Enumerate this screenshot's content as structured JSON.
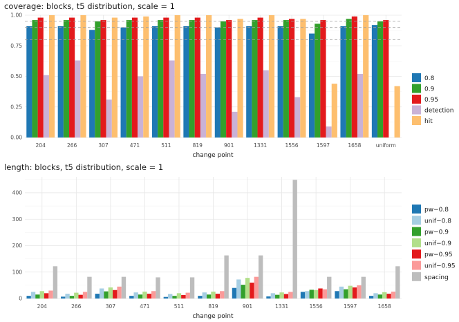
{
  "chart_data": [
    {
      "type": "bar",
      "title": "coverage: blocks, t5 distribution, scale = 1",
      "xlabel": "change point",
      "ylabel": "",
      "ylim": [
        0,
        1.0
      ],
      "yticks": [
        "0.00",
        "0.25",
        "0.50",
        "0.75",
        "1.00"
      ],
      "reference_lines": [
        0.8,
        0.9,
        0.95
      ],
      "categories": [
        "204",
        "266",
        "307",
        "471",
        "511",
        "819",
        "901",
        "1331",
        "1556",
        "1597",
        "1658",
        "uniform"
      ],
      "legend_position": "right",
      "grid": true,
      "series": [
        {
          "name": "0.8",
          "color": "#1f78b4",
          "values": [
            0.91,
            0.91,
            0.88,
            0.9,
            0.91,
            0.91,
            0.9,
            0.91,
            0.91,
            0.85,
            0.91,
            0.92
          ]
        },
        {
          "name": "0.9",
          "color": "#33a02c",
          "values": [
            0.96,
            0.96,
            0.95,
            0.96,
            0.96,
            0.96,
            0.95,
            0.96,
            0.96,
            0.93,
            0.97,
            0.95
          ]
        },
        {
          "name": "0.95",
          "color": "#e31a1c",
          "values": [
            0.98,
            0.98,
            0.96,
            0.98,
            0.98,
            0.98,
            0.96,
            0.98,
            0.97,
            0.96,
            0.99,
            0.96
          ]
        },
        {
          "name": "detection",
          "color": "#cab2d6",
          "values": [
            0.51,
            0.63,
            0.31,
            0.5,
            0.63,
            0.52,
            0.21,
            0.55,
            0.33,
            0.09,
            0.52,
            null
          ]
        },
        {
          "name": "hit",
          "color": "#fdbf6f",
          "values": [
            1.0,
            1.0,
            0.98,
            0.99,
            1.0,
            1.0,
            0.97,
            1.0,
            0.97,
            0.44,
            1.0,
            0.42
          ]
        }
      ]
    },
    {
      "type": "bar",
      "title": "length: blocks, t5 distribution, scale = 1",
      "xlabel": "change point",
      "ylabel": "",
      "ylim": [
        0,
        460
      ],
      "yticks": [
        "0",
        "100",
        "200",
        "300",
        "400"
      ],
      "categories": [
        "204",
        "266",
        "307",
        "471",
        "511",
        "819",
        "901",
        "1331",
        "1556",
        "1597",
        "1658"
      ],
      "legend_position": "right",
      "grid": true,
      "series": [
        {
          "name": "pw−0.8",
          "color": "#1f78b4",
          "values": [
            10,
            7,
            18,
            10,
            6,
            10,
            40,
            8,
            25,
            28,
            10
          ]
        },
        {
          "name": "unif−0.8",
          "color": "#a6cee3",
          "values": [
            25,
            18,
            38,
            23,
            17,
            23,
            72,
            20,
            28,
            45,
            20
          ]
        },
        {
          "name": "pw−0.9",
          "color": "#33a02c",
          "values": [
            15,
            10,
            27,
            15,
            10,
            15,
            52,
            14,
            33,
            35,
            15
          ]
        },
        {
          "name": "unif−0.9",
          "color": "#b2df8a",
          "values": [
            28,
            22,
            42,
            26,
            20,
            26,
            78,
            23,
            32,
            48,
            24
          ]
        },
        {
          "name": "pw−0.95",
          "color": "#e31a1c",
          "values": [
            20,
            14,
            32,
            18,
            13,
            18,
            60,
            17,
            38,
            42,
            18
          ]
        },
        {
          "name": "unif−0.95",
          "color": "#fb9a99",
          "values": [
            30,
            25,
            45,
            28,
            22,
            28,
            82,
            25,
            35,
            50,
            26
          ]
        },
        {
          "name": "spacing",
          "color": "#bdbdbd",
          "values": [
            122,
            82,
            82,
            80,
            80,
            163,
            163,
            449,
            82,
            82,
            122
          ]
        }
      ]
    }
  ]
}
